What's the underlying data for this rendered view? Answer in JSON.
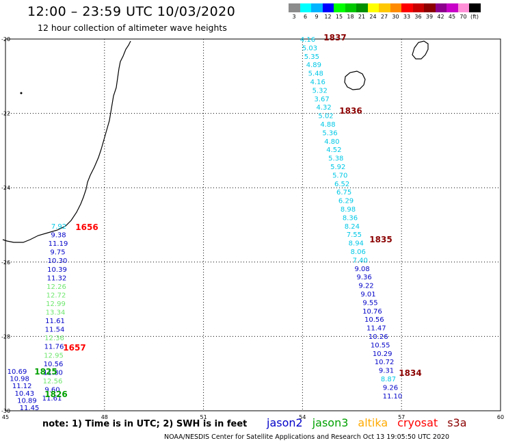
{
  "header": {
    "title": "12:00 – 23:59 UTC 10/03/2020",
    "subtitle": "12 hour collection of altimeter wave heights"
  },
  "legend": {
    "colors": [
      "#8c8c8c",
      "#00ffff",
      "#00b4ff",
      "#0000ff",
      "#00ff00",
      "#00c800",
      "#009000",
      "#ffff00",
      "#ffc800",
      "#ff8c00",
      "#ff0000",
      "#c80000",
      "#8c0000",
      "#8c008c",
      "#c800c8",
      "#ff90d8",
      "#000000"
    ],
    "labels": [
      "3",
      "6",
      "9",
      "12",
      "15",
      "18",
      "21",
      "24",
      "27",
      "30",
      "33",
      "36",
      "39",
      "42",
      "45",
      "70",
      "(ft)"
    ]
  },
  "axes": {
    "x_ticks": [
      "45",
      "48",
      "51",
      "54",
      "57",
      "60"
    ],
    "y_ticks": [
      "-20",
      "-22",
      "-24",
      "-26",
      "-28",
      "-30"
    ],
    "x_range": [
      45,
      60
    ],
    "y_range": [
      -30,
      -20
    ]
  },
  "colors": {
    "jason2": "#0000c8",
    "jason3": "#00a000",
    "altika": "#ffaa00",
    "cryosat": "#ff0000",
    "s3a": "#8b0000",
    "cyan": "#00c8e6",
    "lightgreen": "#6ee66e"
  },
  "tracks": {
    "west": {
      "values": [
        {
          "text": "7.92",
          "c": "cyan"
        },
        {
          "text": "9.38",
          "c": "jason2"
        },
        {
          "text": "11.19",
          "c": "jason2"
        },
        {
          "text": "9.75",
          "c": "jason2"
        },
        {
          "text": "10.30",
          "c": "jason2"
        },
        {
          "text": "10.39",
          "c": "jason2"
        },
        {
          "text": "11.32",
          "c": "jason2"
        },
        {
          "text": "12.26",
          "c": "lightgreen"
        },
        {
          "text": "12.72",
          "c": "lightgreen"
        },
        {
          "text": "12.99",
          "c": "lightgreen"
        },
        {
          "text": "13.34",
          "c": "lightgreen"
        },
        {
          "text": "11.61",
          "c": "jason2"
        },
        {
          "text": "11.54",
          "c": "jason2"
        },
        {
          "text": "12.36",
          "c": "lightgreen"
        },
        {
          "text": "11.76",
          "c": "jason2"
        },
        {
          "text": "12.95",
          "c": "lightgreen"
        },
        {
          "text": "10.56",
          "c": "jason2"
        },
        {
          "text": "11.80",
          "c": "jason2"
        },
        {
          "text": "12.56",
          "c": "lightgreen"
        },
        {
          "text": "9.60",
          "c": "jason2"
        },
        {
          "text": "11.61",
          "c": "jason2"
        }
      ]
    },
    "west2": {
      "values": [
        {
          "text": "10.69",
          "c": "jason2"
        },
        {
          "text": "10.98",
          "c": "jason2"
        },
        {
          "text": "11.12",
          "c": "jason2"
        },
        {
          "text": "10.43",
          "c": "jason2"
        },
        {
          "text": "10.89",
          "c": "jason2"
        },
        {
          "text": "11.45",
          "c": "jason2"
        }
      ]
    },
    "east": {
      "values": [
        {
          "text": "4.16",
          "c": "cyan"
        },
        {
          "text": "5.03",
          "c": "cyan"
        },
        {
          "text": "5.35",
          "c": "cyan"
        },
        {
          "text": "4.89",
          "c": "cyan"
        },
        {
          "text": "5.48",
          "c": "cyan"
        },
        {
          "text": "4.16",
          "c": "cyan"
        },
        {
          "text": "5.32",
          "c": "cyan"
        },
        {
          "text": "3.67",
          "c": "cyan"
        },
        {
          "text": "4.32",
          "c": "cyan"
        },
        {
          "text": "5.02",
          "c": "cyan"
        },
        {
          "text": "4.88",
          "c": "cyan"
        },
        {
          "text": "5.36",
          "c": "cyan"
        },
        {
          "text": "4.80",
          "c": "cyan"
        },
        {
          "text": "4.52",
          "c": "cyan"
        },
        {
          "text": "5.38",
          "c": "cyan"
        },
        {
          "text": "5.92",
          "c": "cyan"
        },
        {
          "text": "5.70",
          "c": "cyan"
        },
        {
          "text": "6.52",
          "c": "cyan"
        },
        {
          "text": "6.75",
          "c": "cyan"
        },
        {
          "text": "6.29",
          "c": "cyan"
        },
        {
          "text": "8.98",
          "c": "cyan"
        },
        {
          "text": "8.36",
          "c": "cyan"
        },
        {
          "text": "8.24",
          "c": "cyan"
        },
        {
          "text": "7.55",
          "c": "cyan"
        },
        {
          "text": "8.94",
          "c": "cyan"
        },
        {
          "text": "8.06",
          "c": "cyan"
        },
        {
          "text": "7.40",
          "c": "cyan"
        },
        {
          "text": "9.08",
          "c": "jason2"
        },
        {
          "text": "9.36",
          "c": "jason2"
        },
        {
          "text": "9.22",
          "c": "jason2"
        },
        {
          "text": "9.01",
          "c": "jason2"
        },
        {
          "text": "9.55",
          "c": "jason2"
        },
        {
          "text": "10.76",
          "c": "jason2"
        },
        {
          "text": "10.56",
          "c": "jason2"
        },
        {
          "text": "11.47",
          "c": "jason2"
        },
        {
          "text": "10.26",
          "c": "jason2"
        },
        {
          "text": "10.55",
          "c": "jason2"
        },
        {
          "text": "10.29",
          "c": "jason2"
        },
        {
          "text": "10.72",
          "c": "jason2"
        },
        {
          "text": "9.31",
          "c": "jason2"
        },
        {
          "text": "8.87",
          "c": "cyan"
        },
        {
          "text": "9.26",
          "c": "jason2"
        },
        {
          "text": "11.10",
          "c": "jason2"
        }
      ]
    }
  },
  "time_labels": [
    {
      "text": "1837",
      "c": "s3a"
    },
    {
      "text": "1836",
      "c": "s3a"
    },
    {
      "text": "1835",
      "c": "s3a"
    },
    {
      "text": "1834",
      "c": "s3a"
    },
    {
      "text": "1656",
      "c": "cryosat"
    },
    {
      "text": "1657",
      "c": "cryosat"
    },
    {
      "text": "1825",
      "c": "jason3"
    },
    {
      "text": "1826",
      "c": "jason3"
    }
  ],
  "footer": {
    "note": "note:  1) Time is in UTC;  2) SWH is in feet",
    "satellites": [
      {
        "text": "jason2",
        "c": "jason2"
      },
      {
        "text": "jason3",
        "c": "jason3"
      },
      {
        "text": "altika",
        "c": "altika"
      },
      {
        "text": "cryosat",
        "c": "cryosat"
      },
      {
        "text": "s3a",
        "c": "s3a"
      }
    ],
    "credit": "NOAA/NESDIS Center for Satellite Applications and Research     Oct 13 19:05:50 UTC 2020"
  }
}
